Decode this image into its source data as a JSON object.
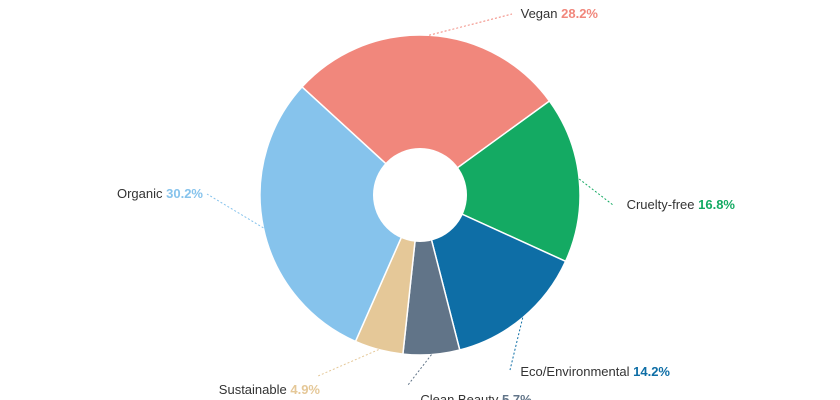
{
  "chart_data": {
    "type": "pie",
    "variant": "donut",
    "title": "",
    "slices": [
      {
        "name": "Vegan",
        "value_label": "28.2%",
        "value": 28.2,
        "color": "#f1877c"
      },
      {
        "name": "Cruelty-free",
        "value_label": "16.8%",
        "value": 16.8,
        "color": "#14aa63"
      },
      {
        "name": "Eco/Environmental",
        "value_label": "14.2%",
        "value": 14.2,
        "color": "#0e6ea6"
      },
      {
        "name": "Clean Beauty",
        "value_label": "5.7%",
        "value": 5.7,
        "color": "#617488"
      },
      {
        "name": "Sustainable",
        "value_label": "4.9%",
        "value": 4.9,
        "color": "#e5c898"
      },
      {
        "name": "Organic",
        "value_label": "30.2%",
        "value": 30.2,
        "color": "#86c3ec"
      }
    ]
  }
}
